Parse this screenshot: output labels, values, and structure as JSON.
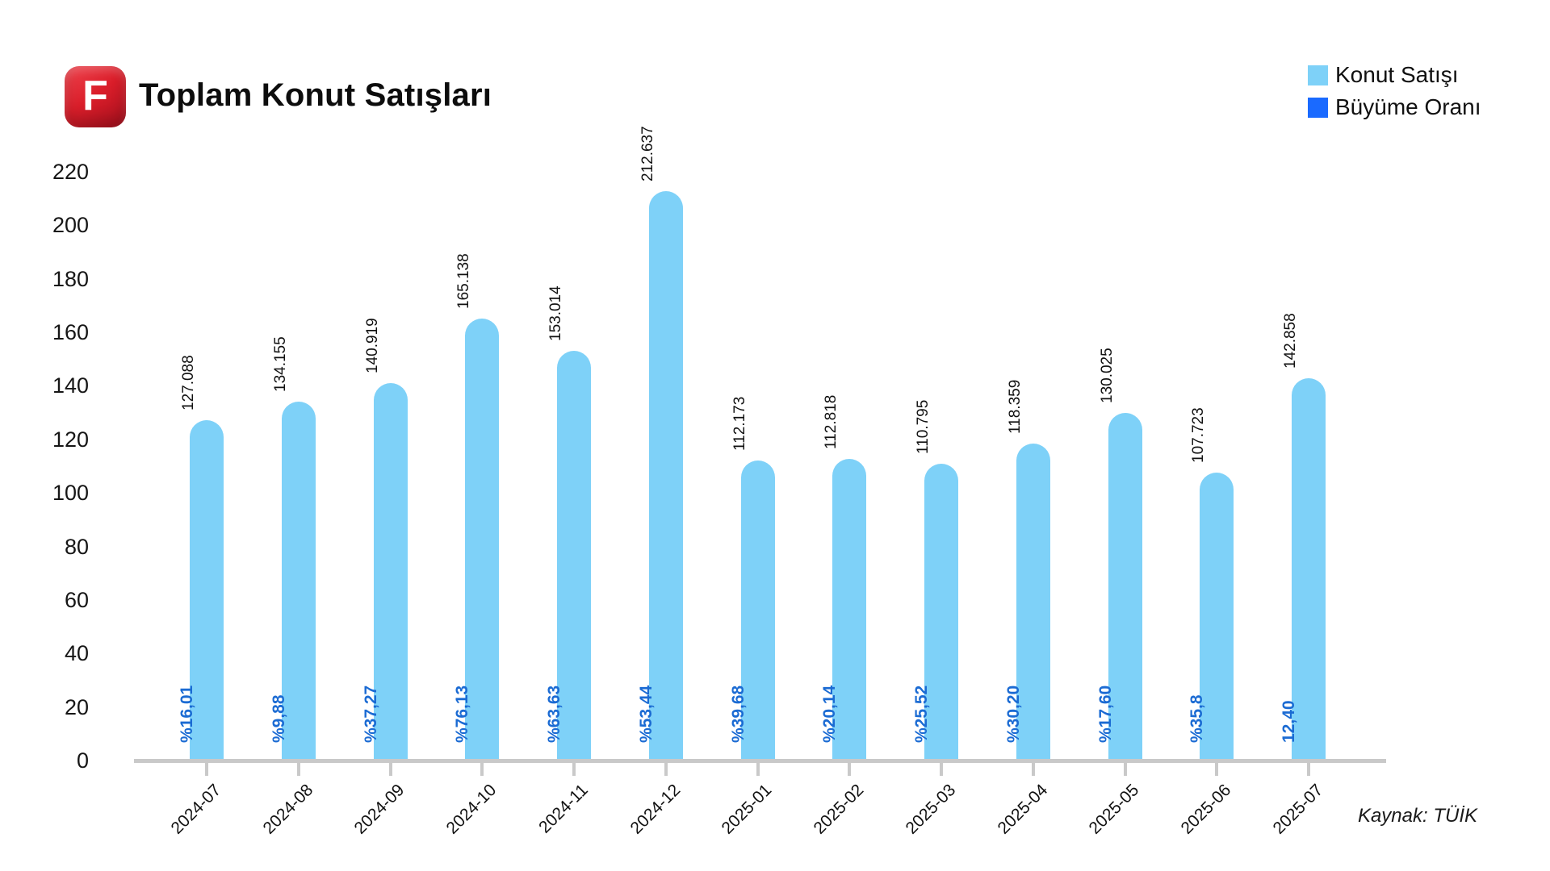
{
  "header": {
    "logo_letter": "F",
    "title": "Toplam Konut Satışları"
  },
  "legend": [
    {
      "label": "Konut Satışı",
      "color": "#7ed1f8"
    },
    {
      "label": "Büyüme Oranı",
      "color": "#1a6aff"
    }
  ],
  "source_note": "Kaynak: TÜİK",
  "colors": {
    "bar_fill": "#7ed1f8",
    "growth_text": "#1b6bd3",
    "axis": "#c9c9c9",
    "text": "#111111",
    "logo_red": "#d81e2a"
  },
  "chart_data": {
    "type": "bar",
    "title": "Toplam Konut Satışları",
    "categories": [
      "2024-07",
      "2024-08",
      "2024-09",
      "2024-10",
      "2024-11",
      "2024-12",
      "2025-01",
      "2025-02",
      "2025-03",
      "2025-04",
      "2025-05",
      "2025-06",
      "2025-07"
    ],
    "series": [
      {
        "name": "Konut Satışı",
        "color": "#7ed1f8",
        "values": [
          127088,
          134155,
          140919,
          165138,
          153014,
          212637,
          112173,
          112818,
          110795,
          118359,
          130025,
          107723,
          142858
        ],
        "value_labels": [
          "127.088",
          "134.155",
          "140.919",
          "165.138",
          "153.014",
          "212.637",
          "112.173",
          "112.818",
          "110.795",
          "118.359",
          "130.025",
          "107.723",
          "142.858"
        ]
      },
      {
        "name": "Büyüme Oranı",
        "color": "#1a6aff",
        "rendered_as": "labels-inside-bars",
        "values": [
          16.01,
          9.88,
          37.27,
          76.13,
          63.63,
          53.44,
          39.68,
          20.14,
          25.52,
          30.2,
          17.6,
          35.8,
          12.4
        ],
        "value_labels": [
          "%16,01",
          "%9,88",
          "%37,27",
          "%76,13",
          "%63,63",
          "%53,44",
          "%39,68",
          "%20,14",
          "%25,52",
          "%30,20",
          "%17,60",
          "%35,8",
          "12,40"
        ]
      }
    ],
    "ylabel": "",
    "xlabel": "",
    "ylim": [
      0,
      220
    ],
    "yticks": [
      0,
      20,
      40,
      60,
      80,
      100,
      120,
      140,
      160,
      180,
      200,
      220
    ],
    "y_unit": "thousands",
    "grid": false,
    "legend_position": "top-right",
    "source": "Kaynak: TÜİK"
  }
}
